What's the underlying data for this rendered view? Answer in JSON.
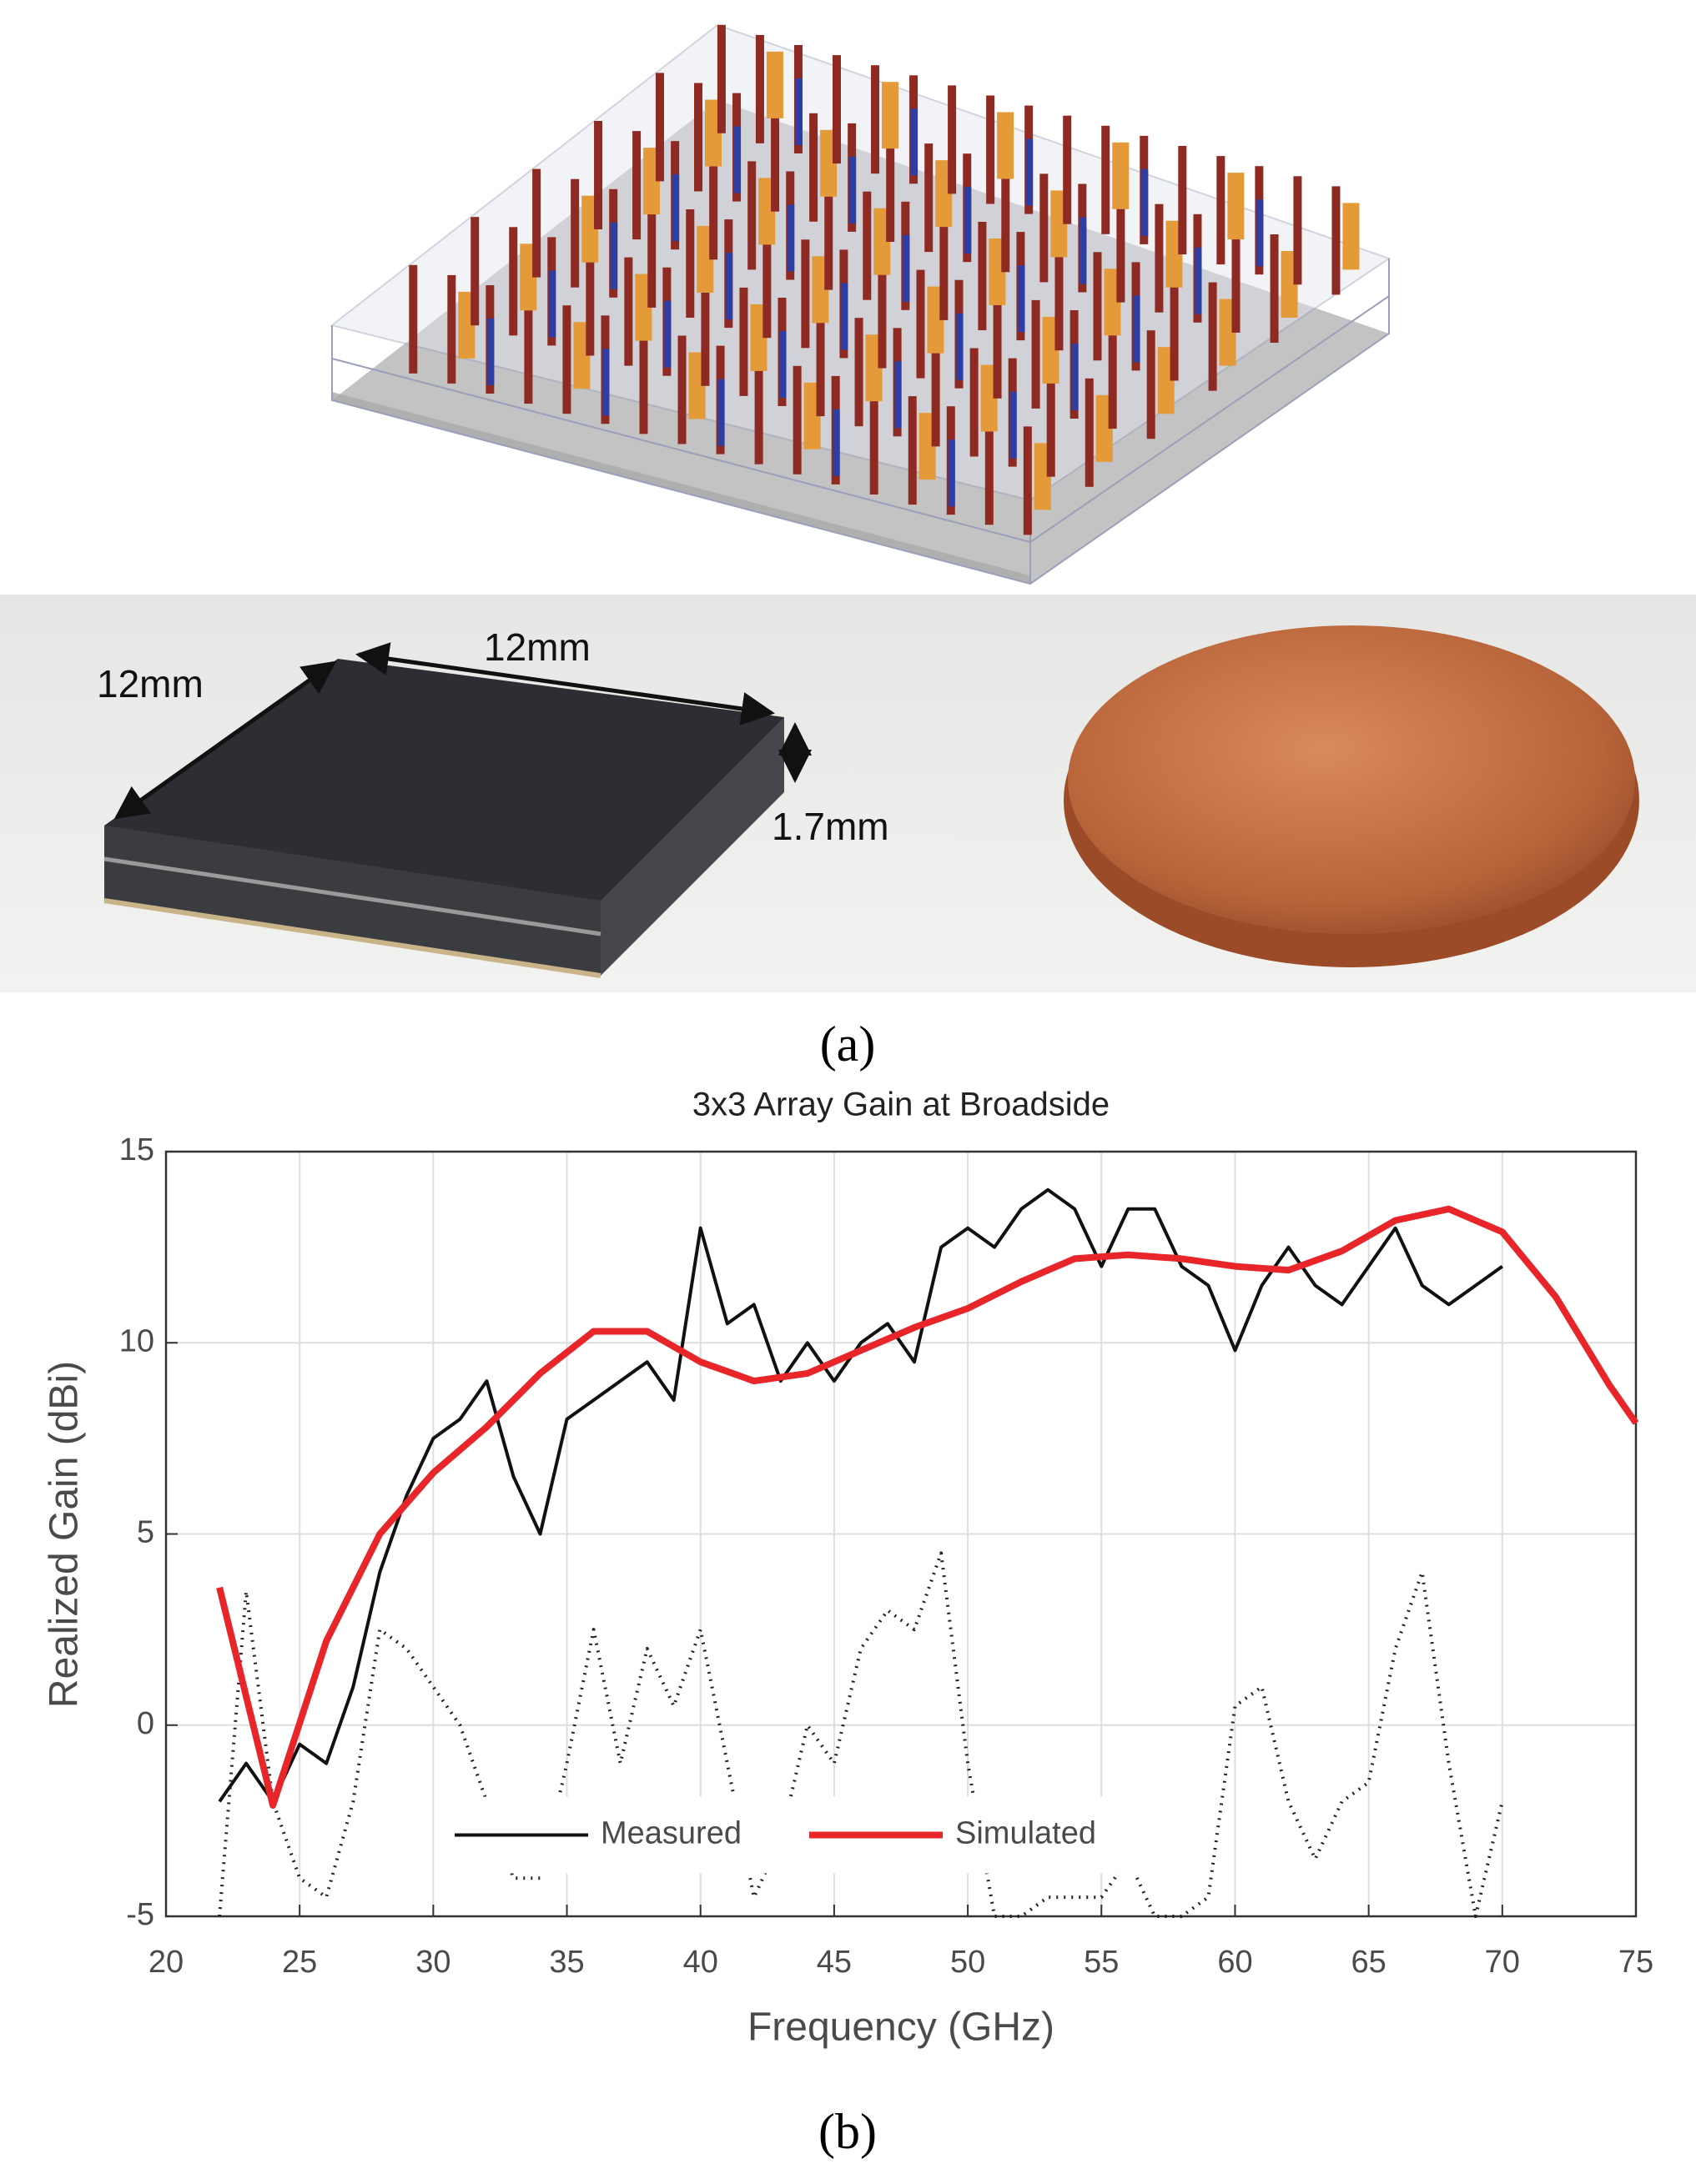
{
  "figure": {
    "dimension_labels": [
      "12mm",
      "12mm",
      "1.7mm"
    ],
    "caption_a": "(a)",
    "caption_b": "(b)"
  },
  "chart_data": {
    "type": "line",
    "title": "3x3 Array Gain at Broadside",
    "xlabel": "Frequency (GHz)",
    "ylabel": "Realized Gain (dBi)",
    "xlim": [
      20,
      75
    ],
    "xticks": [
      20,
      25,
      30,
      35,
      40,
      45,
      50,
      55,
      60,
      65,
      70,
      75
    ],
    "ylim": [
      -5,
      15
    ],
    "yticks": [
      -5,
      0,
      5,
      10,
      15
    ],
    "grid": true,
    "legend": "lower center",
    "series": [
      {
        "name": "Measured",
        "color": "#111111",
        "style": "solid",
        "x": [
          22,
          23,
          24,
          25,
          26,
          27,
          28,
          29,
          30,
          31,
          32,
          33,
          34,
          35,
          36,
          37,
          38,
          39,
          40,
          41,
          42,
          43,
          44,
          45,
          46,
          47,
          48,
          49,
          50,
          51,
          52,
          53,
          54,
          55,
          56,
          57,
          58,
          59,
          60,
          61,
          62,
          63,
          64,
          65,
          66,
          67,
          68,
          69,
          70
        ],
        "values": [
          -2,
          -1,
          -2,
          -0.5,
          -1,
          1,
          4,
          6,
          7.5,
          8,
          9,
          6.5,
          5,
          8,
          8.5,
          9,
          9.5,
          8.5,
          13,
          10.5,
          11,
          9,
          10,
          9,
          10,
          10.5,
          9.5,
          12.5,
          13,
          12.5,
          13.5,
          14,
          13.5,
          12,
          13.5,
          13.5,
          12,
          11.5,
          9.8,
          11.5,
          12.5,
          11.5,
          11,
          12,
          13,
          11.5,
          11,
          11.5,
          12
        ]
      },
      {
        "name": "Simulated",
        "color": "#e8262a",
        "style": "solid",
        "x": [
          22,
          24,
          26,
          28,
          30,
          32,
          34,
          36,
          38,
          40,
          42,
          44,
          46,
          48,
          50,
          52,
          54,
          56,
          58,
          60,
          62,
          64,
          66,
          68,
          70,
          72,
          74,
          75
        ],
        "values": [
          3.6,
          -2.1,
          2.2,
          5.0,
          6.6,
          7.8,
          9.2,
          10.3,
          10.3,
          9.5,
          9.0,
          9.2,
          9.8,
          10.4,
          10.9,
          11.6,
          12.2,
          12.3,
          12.2,
          12.0,
          11.9,
          12.4,
          13.2,
          13.5,
          12.9,
          11.2,
          8.9,
          7.9
        ]
      },
      {
        "color": "#222222",
        "style": "dotted",
        "x": [
          22,
          23,
          24,
          25,
          26,
          27,
          28,
          29,
          30,
          31,
          32,
          33,
          34,
          35,
          36,
          37,
          38,
          39,
          40,
          41,
          42,
          43,
          44,
          45,
          46,
          47,
          48,
          49,
          50,
          51,
          52,
          53,
          54,
          55,
          56,
          57,
          58,
          59,
          60,
          61,
          62,
          63,
          64,
          65,
          66,
          67,
          68,
          69,
          70
        ],
        "values": [
          -5,
          3.5,
          -2,
          -4,
          -4.5,
          -2,
          2.5,
          2,
          1,
          0,
          -2,
          -4,
          -4,
          -1,
          2.5,
          -1,
          2,
          0.5,
          2.5,
          -1,
          -4.5,
          -3,
          0,
          -1,
          2,
          3,
          2.5,
          4.5,
          -1,
          -5,
          -5,
          -4.5,
          -4.5,
          -4.5,
          -3.5,
          -5,
          -5,
          -4.5,
          0.5,
          1,
          -2,
          -3.5,
          -2,
          -1.5,
          2,
          4,
          -1,
          -5,
          -2
        ]
      }
    ]
  }
}
